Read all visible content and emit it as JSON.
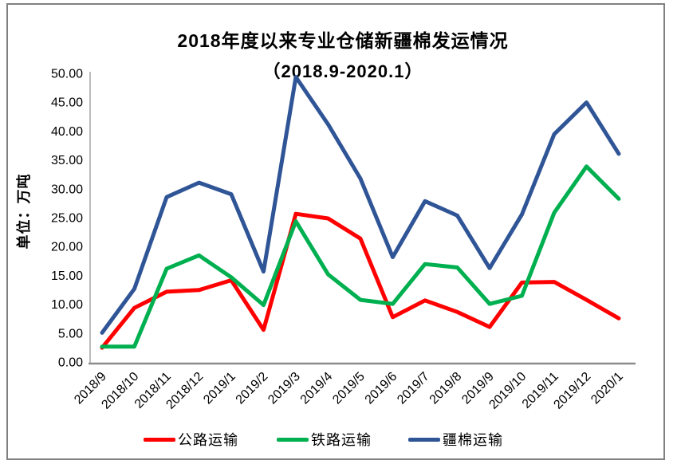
{
  "chart_data": {
    "type": "line",
    "title": "2018年度以来专业仓储新疆棉发运情况",
    "subtitle": "（2018.9-2020.1）",
    "ylabel": "单位：万吨",
    "xlabel": "",
    "ylim": [
      0,
      50
    ],
    "ytick_step": 5,
    "ytick_format": "0.00",
    "grid": false,
    "legend_position": "bottom",
    "categories": [
      "2018/9",
      "2018/10",
      "2018/11",
      "2018/12",
      "2019/1",
      "2019/2",
      "2019/3",
      "2019/4",
      "2019/5",
      "2019/6",
      "2019/7",
      "2019/8",
      "2019/9",
      "2019/10",
      "2019/11",
      "2019/12",
      "2020/1"
    ],
    "series": [
      {
        "key": "road",
        "name": "公路运输",
        "color": "#FF0000",
        "values": [
          2.6,
          9.5,
          12.3,
          12.6,
          14.3,
          5.7,
          25.8,
          25.0,
          21.5,
          7.9,
          10.8,
          8.8,
          6.2,
          13.9,
          14.0,
          10.9,
          7.7
        ]
      },
      {
        "key": "rail",
        "name": "铁路运输",
        "color": "#00B050",
        "values": [
          2.8,
          2.8,
          16.3,
          18.6,
          14.8,
          10.0,
          24.5,
          15.3,
          10.9,
          10.2,
          17.1,
          16.5,
          10.2,
          11.6,
          26.0,
          34.0,
          28.4
        ]
      },
      {
        "key": "cotton",
        "name": "疆棉运输",
        "color": "#2F5597",
        "values": [
          5.2,
          12.8,
          28.7,
          31.2,
          29.2,
          15.8,
          49.5,
          41.3,
          31.9,
          18.3,
          28.0,
          25.5,
          16.4,
          25.7,
          39.6,
          45.1,
          36.2
        ]
      }
    ],
    "y_tick_labels": [
      "0.00",
      "5.00",
      "10.00",
      "15.00",
      "20.00",
      "25.00",
      "30.00",
      "35.00",
      "40.00",
      "45.00",
      "50.00"
    ]
  },
  "style": {
    "background": "#FFFFFF",
    "frame_color": "#808080",
    "y_axis_color": "#A6A6A6",
    "x_axis_color": "#8C8C8C",
    "text_color": "#000000"
  }
}
